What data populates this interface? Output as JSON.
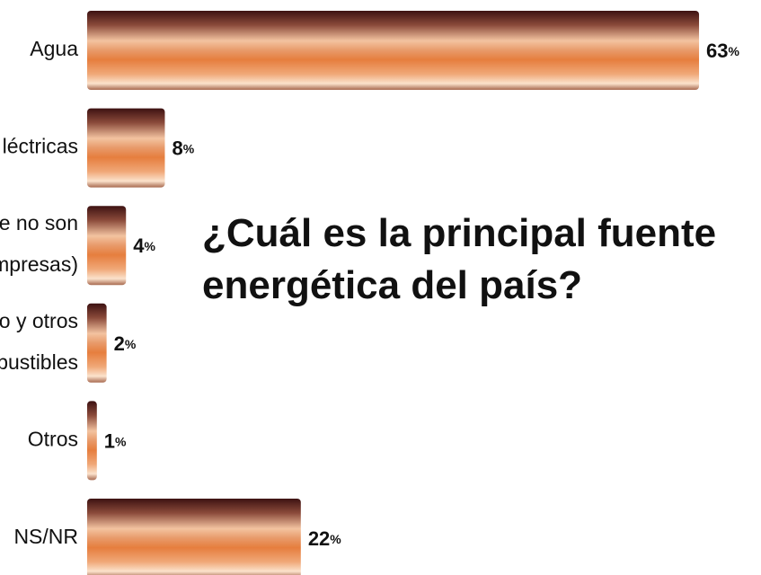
{
  "chart_data": {
    "type": "bar",
    "orientation": "horizontal",
    "title": "¿Cuál es la principal fuente\nenergética del país?",
    "categories": [
      "Agua",
      "léctricas",
      "e no son\nmpresas)",
      "o y otros\nbustibles",
      "Otros",
      "NS/NR"
    ],
    "values": [
      63,
      8,
      4,
      2,
      1,
      22
    ],
    "value_labels": [
      "63%",
      "8%",
      "4%",
      "2%",
      "1%",
      "22%"
    ],
    "color": "#e8864a"
  }
}
